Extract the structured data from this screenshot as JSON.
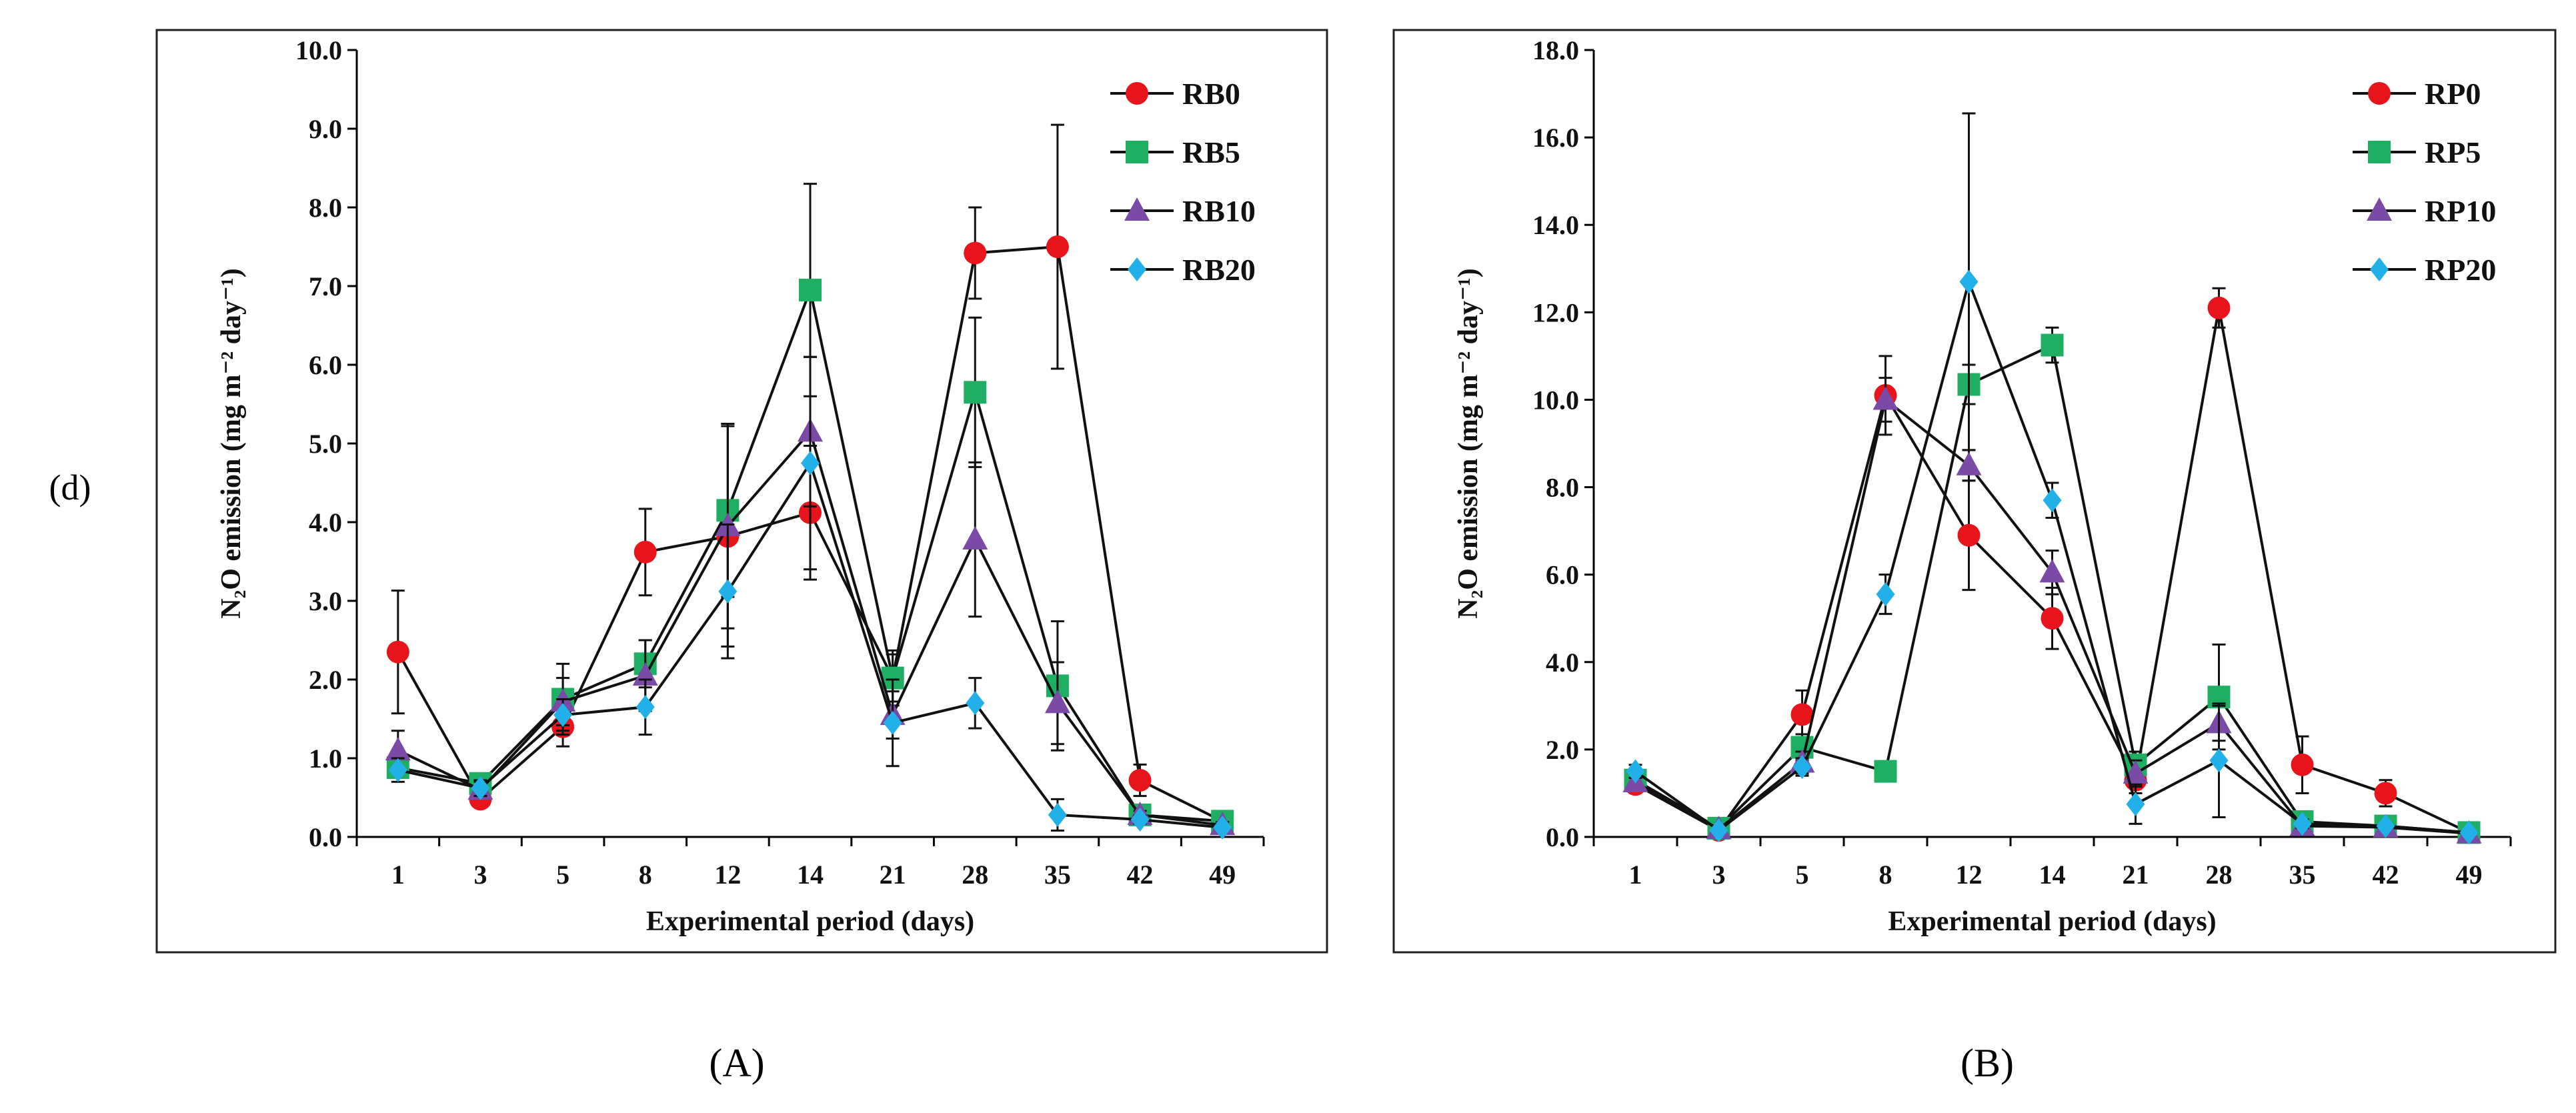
{
  "figure": {
    "row_label": "(d)",
    "panel_labels": [
      "(A)",
      "(B)"
    ]
  },
  "colors": {
    "series_0": "#e8141c",
    "series_5": "#1fae62",
    "series_10": "#7a4aa6",
    "series_20": "#22b0e8",
    "line": "#111111"
  },
  "chart_data": [
    {
      "type": "line",
      "panel": "(A)",
      "title": "",
      "xlabel": "Experimental period (days)",
      "ylabel": "N₂O emission (mg m⁻² day⁻¹)",
      "categories": [
        "1",
        "3",
        "5",
        "8",
        "12",
        "14",
        "21",
        "28",
        "35",
        "42",
        "49"
      ],
      "ylim": [
        0,
        10
      ],
      "yticks": [
        "0.0",
        "1.0",
        "2.0",
        "3.0",
        "4.0",
        "5.0",
        "6.0",
        "7.0",
        "8.0",
        "9.0",
        "10.0"
      ],
      "legend_position": "top-right",
      "series": [
        {
          "name": "RB0",
          "marker": "circle",
          "color": "#e8141c",
          "values": [
            2.35,
            0.48,
            1.4,
            3.62,
            3.82,
            4.12,
            2.02,
            7.42,
            7.5,
            0.72,
            0.2
          ],
          "errors": [
            0.78,
            0.1,
            0.25,
            0.55,
            1.4,
            0.85,
            0.3,
            0.58,
            1.55,
            0.2,
            0.05
          ]
        },
        {
          "name": "RB5",
          "marker": "square",
          "color": "#1fae62",
          "values": [
            0.88,
            0.68,
            1.75,
            2.2,
            4.15,
            6.95,
            2.02,
            5.65,
            1.92,
            0.28,
            0.2
          ],
          "errors": [
            0.12,
            0.1,
            0.45,
            0.3,
            1.1,
            1.35,
            0.35,
            0.95,
            0.82,
            0.08,
            0.05
          ]
        },
        {
          "name": "RB10",
          "marker": "triangle",
          "color": "#7a4aa6",
          "values": [
            1.1,
            0.6,
            1.72,
            2.05,
            3.95,
            5.15,
            1.55,
            3.78,
            1.7,
            0.28,
            0.15
          ],
          "errors": [
            0.25,
            0.1,
            0.3,
            0.45,
            1.3,
            0.95,
            0.3,
            0.98,
            0.52,
            0.05,
            0.04
          ]
        },
        {
          "name": "RB20",
          "marker": "diamond",
          "color": "#22b0e8",
          "values": [
            0.85,
            0.62,
            1.55,
            1.65,
            3.12,
            4.75,
            1.45,
            1.7,
            0.28,
            0.22,
            0.12
          ],
          "errors": [
            0.15,
            0.1,
            0.2,
            0.35,
            0.85,
            1.35,
            0.55,
            0.32,
            0.2,
            0.05,
            0.03
          ]
        }
      ]
    },
    {
      "type": "line",
      "panel": "(B)",
      "title": "",
      "xlabel": "Experimental period (days)",
      "ylabel": "N₂O emission (mg m⁻² day⁻¹)",
      "categories": [
        "1",
        "3",
        "5",
        "8",
        "12",
        "14",
        "21",
        "28",
        "35",
        "42",
        "49"
      ],
      "ylim": [
        0,
        18
      ],
      "yticks": [
        "0.0",
        "2.0",
        "4.0",
        "6.0",
        "8.0",
        "10.0",
        "12.0",
        "14.0",
        "16.0",
        "18.0"
      ],
      "legend_position": "top-right",
      "series": [
        {
          "name": "RP0",
          "marker": "circle",
          "color": "#e8141c",
          "values": [
            1.2,
            0.15,
            2.8,
            10.1,
            6.9,
            5.0,
            1.3,
            12.1,
            1.65,
            1.0,
            0.1
          ],
          "errors": [
            0.15,
            0.05,
            0.55,
            0.9,
            1.25,
            0.7,
            0.3,
            0.45,
            0.65,
            0.3,
            0.05
          ]
        },
        {
          "name": "RP5",
          "marker": "square",
          "color": "#1fae62",
          "values": [
            1.3,
            0.2,
            2.05,
            1.5,
            10.35,
            11.25,
            1.65,
            3.2,
            0.35,
            0.25,
            0.1
          ],
          "errors": [
            0.1,
            0.05,
            0.3,
            0.1,
            0.45,
            0.4,
            0.3,
            1.2,
            0.1,
            0.05,
            0.03
          ]
        },
        {
          "name": "RP10",
          "marker": "triangle",
          "color": "#7a4aa6",
          "values": [
            1.25,
            0.18,
            1.7,
            10.0,
            8.5,
            6.05,
            1.45,
            2.6,
            0.25,
            0.22,
            0.08
          ],
          "errors": [
            0.1,
            0.05,
            0.25,
            0.5,
            0.35,
            0.5,
            0.3,
            0.4,
            0.1,
            0.05,
            0.03
          ]
        },
        {
          "name": "RP20",
          "marker": "diamond",
          "color": "#22b0e8",
          "values": [
            1.5,
            0.15,
            1.6,
            5.55,
            12.7,
            7.7,
            0.75,
            1.75,
            0.3,
            0.25,
            0.1
          ],
          "errors": [
            0.15,
            0.05,
            0.2,
            0.45,
            3.85,
            0.4,
            0.45,
            1.3,
            0.1,
            0.05,
            0.03
          ]
        }
      ]
    }
  ]
}
